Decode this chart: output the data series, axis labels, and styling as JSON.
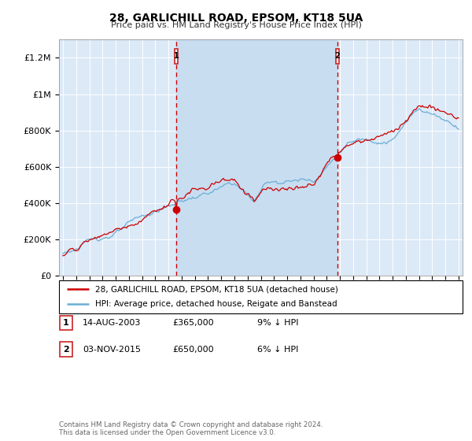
{
  "title": "28, GARLICHILL ROAD, EPSOM, KT18 5UA",
  "subtitle": "Price paid vs. HM Land Registry's House Price Index (HPI)",
  "background_color": "#ffffff",
  "plot_bg_color": "#dce9f7",
  "plot_bg_between": "#c8ddf0",
  "grid_color": "#ffffff",
  "hpi_color": "#6aaed6",
  "price_color": "#cc0000",
  "vline_color": "#cc0000",
  "marker1_price": 365000,
  "marker2_price": 650000,
  "legend_label1": "28, GARLICHILL ROAD, EPSOM, KT18 5UA (detached house)",
  "legend_label2": "HPI: Average price, detached house, Reigate and Banstead",
  "table_row1": [
    "1",
    "14-AUG-2003",
    "£365,000",
    "9% ↓ HPI"
  ],
  "table_row2": [
    "2",
    "03-NOV-2015",
    "£650,000",
    "6% ↓ HPI"
  ],
  "footer": "Contains HM Land Registry data © Crown copyright and database right 2024.\nThis data is licensed under the Open Government Licence v3.0.",
  "ylim": [
    0,
    1300000
  ],
  "yticks": [
    0,
    200000,
    400000,
    600000,
    800000,
    1000000,
    1200000
  ],
  "ytick_labels": [
    "£0",
    "£200K",
    "£400K",
    "£600K",
    "£800K",
    "£1M",
    "£1.2M"
  ],
  "start_year": 1995,
  "end_year": 2025,
  "marker1_year": 2003.6,
  "marker2_year": 2015.8
}
